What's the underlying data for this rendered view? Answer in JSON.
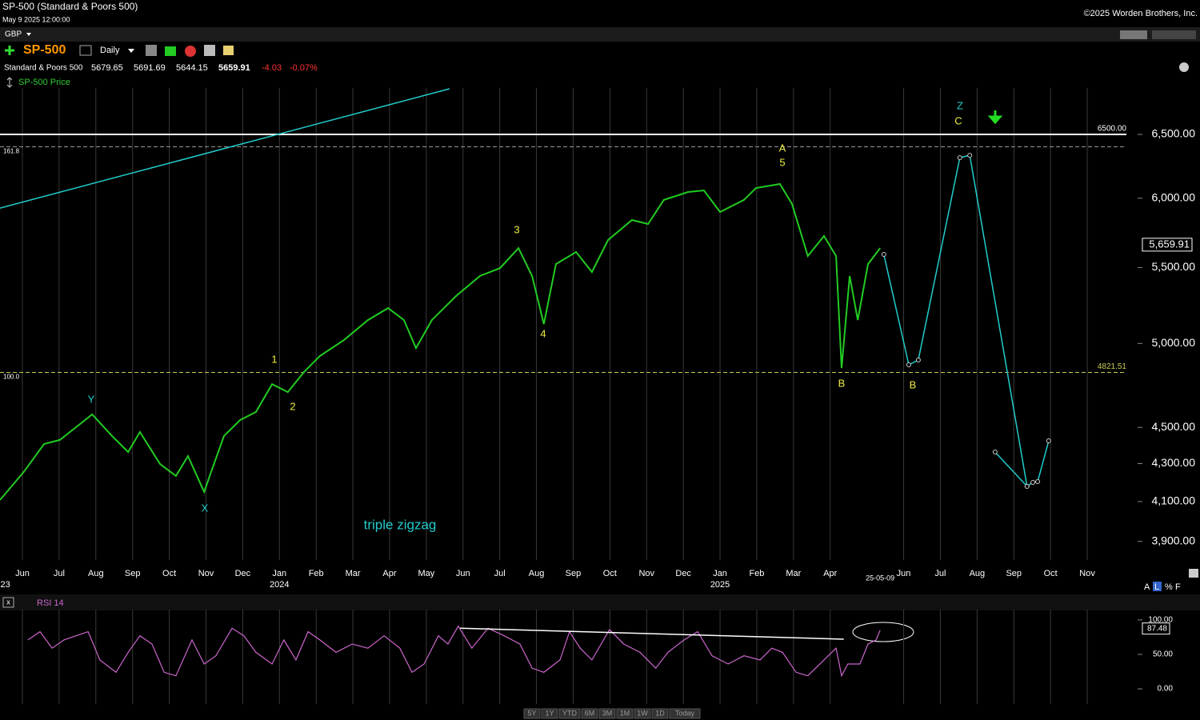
{
  "header": {
    "title": "SP-500 (Standard & Poors 500)",
    "datetime": "May 9 2025 12:00:00",
    "copyright": "©2025 Worden Brothers, Inc.",
    "currency": "GBP",
    "interval": "Daily",
    "quote": {
      "name": "Standard & Poors 500",
      "open": 5679.65,
      "high": 5691.69,
      "low": 5644.15,
      "last": 5659.91,
      "change": -4.03,
      "change_pct": {
        "value": -0.07,
        "label": "-0.07%"
      }
    },
    "range_buttons": [
      "5Y",
      "1Y",
      "YTD",
      "6M",
      "3M",
      "1M",
      "1W",
      "1D",
      "Today"
    ],
    "scale_buttons": [
      "A",
      "L",
      "%",
      "F"
    ]
  },
  "chart_data": [
    {
      "type": "line",
      "title": "SP-500 Price",
      "log_scale": true,
      "grid": true,
      "xlim": [
        -0.61,
        30.11
      ],
      "ylim": [
        3810,
        6890
      ],
      "xticks": [
        {
          "value": 0,
          "label": "Jun"
        },
        {
          "value": 1,
          "label": "Jul"
        },
        {
          "value": 2,
          "label": "Aug"
        },
        {
          "value": 3,
          "label": "Sep"
        },
        {
          "value": 4,
          "label": "Oct"
        },
        {
          "value": 5,
          "label": "Nov"
        },
        {
          "value": 6,
          "label": "Dec"
        },
        {
          "value": 7,
          "label": "Jan"
        },
        {
          "value": 8,
          "label": "Feb"
        },
        {
          "value": 9,
          "label": "Mar"
        },
        {
          "value": 10,
          "label": "Apr"
        },
        {
          "value": 11,
          "label": "May"
        },
        {
          "value": 12,
          "label": "Jun"
        },
        {
          "value": 13,
          "label": "Jul"
        },
        {
          "value": 14,
          "label": "Aug"
        },
        {
          "value": 15,
          "label": "Sep"
        },
        {
          "value": 16,
          "label": "Oct"
        },
        {
          "value": 17,
          "label": "Nov"
        },
        {
          "value": 18,
          "label": "Dec"
        },
        {
          "value": 19,
          "label": "Jan"
        },
        {
          "value": 20,
          "label": "Feb"
        },
        {
          "value": 21,
          "label": "Mar"
        },
        {
          "value": 22,
          "label": "Apr"
        },
        {
          "value": 24,
          "label": "Jun"
        },
        {
          "value": 25,
          "label": "Jul"
        },
        {
          "value": 26,
          "label": "Aug"
        },
        {
          "value": 27,
          "label": "Sep"
        },
        {
          "value": 28,
          "label": "Oct"
        },
        {
          "value": 29,
          "label": "Nov"
        }
      ],
      "year_labels": [
        {
          "value": -0.6,
          "label": "23"
        },
        {
          "value": 7,
          "label": "2024"
        },
        {
          "value": 19,
          "label": "2025"
        }
      ],
      "date_label": {
        "value": 23.36,
        "label": "25-05-09"
      },
      "yticks": [
        {
          "value": 3900,
          "label": "3,900.00"
        },
        {
          "value": 4100,
          "label": "4,100.00"
        },
        {
          "value": 4300,
          "label": "4,300.00"
        },
        {
          "value": 4500,
          "label": "4,500.00"
        },
        {
          "value": 5000,
          "label": "5,000.00"
        },
        {
          "value": 5500,
          "label": "5,500.00"
        },
        {
          "value": 6000,
          "label": "6,000.00"
        },
        {
          "value": 6500,
          "label": "6,500.00"
        }
      ],
      "last_value_label": {
        "value": 5659.91,
        "label": "5,659.91"
      },
      "levels": [
        {
          "value": 6500,
          "label": "6500.00",
          "color": "#ffffff",
          "dashed": false
        },
        {
          "value": 6400,
          "fib": "161.8",
          "color": "#999999",
          "dashed": true
        },
        {
          "value": 4821.51,
          "label": "4821.51",
          "fib": "100.0",
          "color": "#cccc55",
          "dashed": true
        }
      ],
      "trendline": {
        "x": [
          -0.61,
          11.63
        ],
        "values": [
          5926,
          6883
        ],
        "color": "#22cccc"
      },
      "series": [
        {
          "name": "SP-500",
          "color": "#22cc22",
          "x": [
            -0.61,
            0.04,
            0.59,
            1.02,
            1.57,
            1.9,
            2.44,
            2.88,
            3.2,
            3.75,
            4.18,
            4.51,
            4.95,
            5.1,
            5.49,
            5.93,
            6.36,
            6.8,
            7.23,
            7.67,
            8.1,
            8.76,
            9.41,
            9.96,
            10.39,
            10.72,
            11.15,
            11.81,
            12.46,
            13.01,
            13.51,
            13.88,
            14.2,
            14.53,
            15.08,
            15.51,
            15.95,
            16.6,
            17.04,
            17.47,
            18.13,
            18.56,
            19,
            19.65,
            19.98,
            20.63,
            20.96,
            21.39,
            21.83,
            22.16,
            22.31,
            22.53,
            22.75,
            23.03,
            23.36
          ],
          "values": [
            4108,
            4256,
            4407,
            4430,
            4519,
            4574,
            4452,
            4363,
            4474,
            4298,
            4234,
            4341,
            4150,
            4234,
            4452,
            4542,
            4588,
            4751,
            4704,
            4824,
            4922,
            5022,
            5149,
            5227,
            5149,
            4971,
            5149,
            5307,
            5442,
            5496,
            5636,
            5442,
            5123,
            5524,
            5608,
            5469,
            5693,
            5838,
            5809,
            5987,
            6047,
            6059,
            5897,
            5987,
            6077,
            6108,
            5957,
            5580,
            5722,
            5580,
            4848,
            5442,
            5149,
            5524,
            5636
          ]
        },
        {
          "color": "#22cccc",
          "x": [
            23.46,
            24.14,
            24.4,
            25.53,
            25.8,
            27.36,
            27.52,
            27.65,
            27.95
          ],
          "values": [
            5591,
            4868,
            4897,
            6313,
            6332,
            4179,
            4200,
            4204,
            4425
          ]
        },
        {
          "color": "#22cccc",
          "x": [
            26.49,
            27.36
          ],
          "values": [
            4363,
            4179
          ]
        }
      ],
      "annotations": [
        {
          "text": "Y",
          "color": "#22cccc"
        },
        {
          "text": "X",
          "color": "#22cccc"
        },
        {
          "text": "1",
          "color": "#eeee44"
        },
        {
          "text": "2",
          "color": "#eeee44"
        },
        {
          "text": "3",
          "color": "#eeee44"
        },
        {
          "text": "4",
          "color": "#eeee44"
        },
        {
          "text": "A",
          "color": "#eeee44"
        },
        {
          "text": "5",
          "color": "#eeee44"
        },
        {
          "text": "B",
          "color": "#eeee44"
        },
        {
          "text": "B",
          "color": "#eeee44"
        },
        {
          "text": "Z",
          "color": "#22cccc"
        },
        {
          "text": "C",
          "color": "#eeee44"
        },
        {
          "text": "triple zigzag",
          "color": "#22cccc"
        }
      ]
    },
    {
      "type": "line",
      "title": "RSI 14",
      "color": "#cc66cc",
      "xlim": [
        -0.61,
        30.11
      ],
      "ylim": [
        -22,
        115
      ],
      "yticks": [
        {
          "value": 100,
          "label": "100.00"
        },
        {
          "value": 50,
          "label": "50.00"
        },
        {
          "value": 0,
          "label": "0.00"
        }
      ],
      "last_value_label": 87.48,
      "trendline": {
        "x": [
          11.92,
          22.37
        ],
        "values": [
          88,
          72
        ],
        "color": "#ffffff"
      },
      "x": [
        0.15,
        0.48,
        0.81,
        1.13,
        1.46,
        1.79,
        2.11,
        2.55,
        2.88,
        3.2,
        3.53,
        3.86,
        4.18,
        4.62,
        4.95,
        5.27,
        5.71,
        6.03,
        6.36,
        6.8,
        7.12,
        7.45,
        7.78,
        8.1,
        8.54,
        8.98,
        9.41,
        9.85,
        10.28,
        10.61,
        10.94,
        11.33,
        11.59,
        11.87,
        12.24,
        12.68,
        13.12,
        13.55,
        13.88,
        14.2,
        14.64,
        14.9,
        15.19,
        15.51,
        15.99,
        16.38,
        16.82,
        17.25,
        17.58,
        18.02,
        18.39,
        18.78,
        19.22,
        19.65,
        20.09,
        20.41,
        20.7,
        21.07,
        21.39,
        21.83,
        22.16,
        22.31,
        22.48,
        22.81,
        23.03,
        23.25,
        23.36
      ],
      "values": [
        71,
        83,
        59,
        71,
        77,
        83,
        42,
        24,
        53,
        77,
        65,
        24,
        19,
        71,
        36,
        48,
        88,
        77,
        53,
        36,
        71,
        42,
        83,
        71,
        53,
        65,
        59,
        77,
        59,
        24,
        36,
        77,
        65,
        91,
        59,
        88,
        77,
        65,
        30,
        24,
        42,
        83,
        59,
        42,
        86,
        65,
        53,
        30,
        53,
        71,
        83,
        48,
        36,
        48,
        42,
        59,
        53,
        24,
        19,
        42,
        59,
        19,
        36,
        36,
        65,
        71,
        85
      ]
    }
  ]
}
